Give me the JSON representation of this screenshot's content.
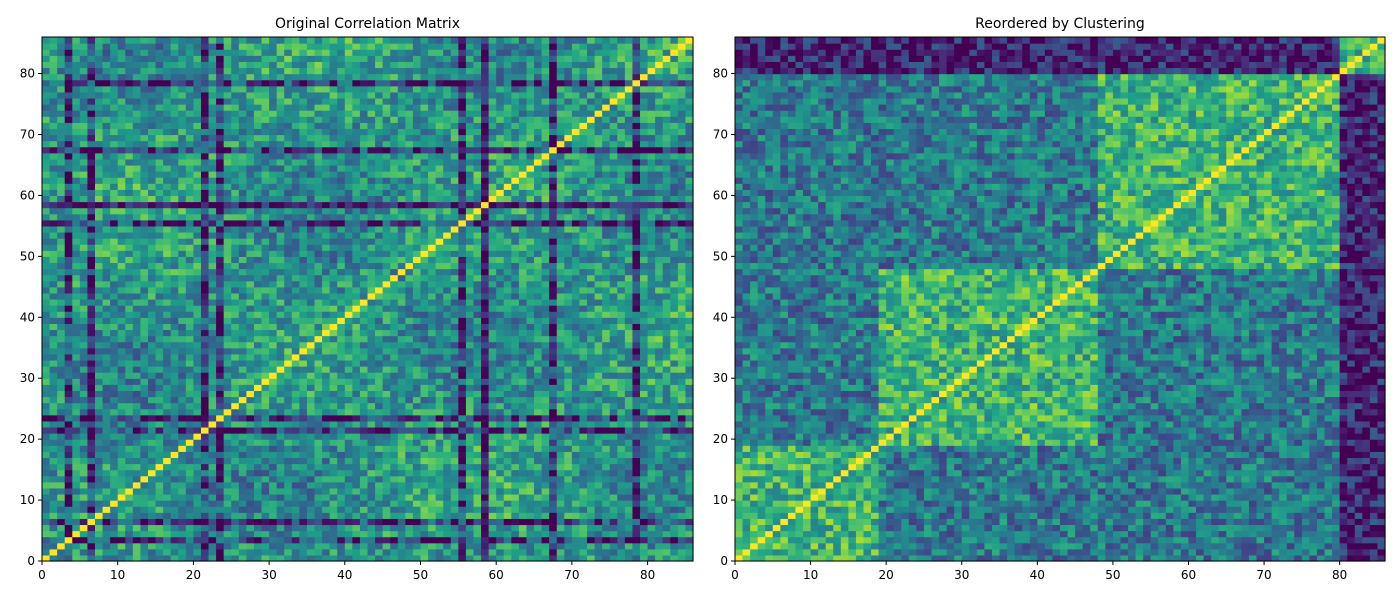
{
  "chart_data": [
    {
      "type": "heatmap",
      "title": "Original Correlation Matrix",
      "xlabel": "",
      "ylabel": "",
      "size": 86,
      "xlim": [
        0,
        86
      ],
      "ylim": [
        0,
        86
      ],
      "xticks": [
        0,
        10,
        20,
        30,
        40,
        50,
        60,
        70,
        80
      ],
      "yticks": [
        0,
        10,
        20,
        30,
        40,
        50,
        60,
        70,
        80
      ],
      "colormap": "viridis",
      "value_range": [
        -0.6,
        1.0
      ],
      "diagonal_value": 1.0,
      "weak_variables": [
        3,
        6,
        21,
        23,
        55,
        58,
        67,
        78
      ],
      "strong_variable": 58
    },
    {
      "type": "heatmap",
      "title": "Reordered by Clustering",
      "xlabel": "",
      "ylabel": "",
      "size": 86,
      "xlim": [
        0,
        86
      ],
      "ylim": [
        0,
        86
      ],
      "xticks": [
        0,
        10,
        20,
        30,
        40,
        50,
        60,
        70,
        80
      ],
      "yticks": [
        0,
        10,
        20,
        30,
        40,
        50,
        60,
        70,
        80
      ],
      "colormap": "viridis",
      "value_range": [
        -0.6,
        1.0
      ],
      "diagonal_value": 1.0,
      "cluster_boundaries": [
        0,
        19,
        48,
        80,
        86
      ]
    }
  ]
}
